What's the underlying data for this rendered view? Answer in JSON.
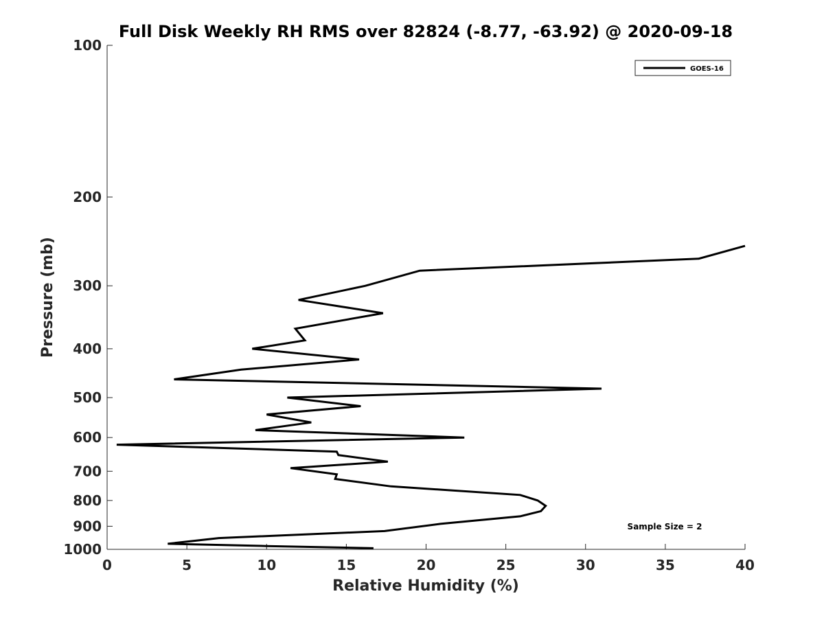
{
  "chart_data": {
    "type": "line",
    "title": "Full Disk Weekly RH RMS over 82824 (-8.77, -63.92) @ 2020-09-18",
    "xlabel": "Relative Humidity (%)",
    "ylabel": "Pressure (mb)",
    "xlim": [
      0,
      40
    ],
    "ylim": [
      1000,
      100
    ],
    "yscale": "log",
    "x_ticks": [
      0,
      5,
      10,
      15,
      20,
      25,
      30,
      35,
      40
    ],
    "y_ticks": [
      100,
      200,
      300,
      400,
      500,
      600,
      700,
      800,
      900,
      1000
    ],
    "grid": false,
    "legend_position": "top-right",
    "annotation": "Sample Size = 2",
    "series": [
      {
        "name": "GOES-16",
        "color": "#000000",
        "x": [
          40.0,
          37.1,
          19.6,
          16.2,
          12.0,
          17.3,
          11.8,
          12.4,
          9.1,
          15.8,
          8.4,
          4.2,
          31.0,
          11.3,
          15.9,
          10.0,
          12.8,
          9.3,
          22.4,
          0.6,
          14.4,
          14.5,
          17.6,
          11.5,
          14.4,
          14.3,
          17.8,
          25.9,
          27.0,
          27.5,
          27.2,
          25.9,
          20.9,
          17.4,
          7.0,
          3.8,
          10.0,
          16.7
        ],
        "y": [
          250,
          265,
          280,
          300,
          320,
          340,
          365,
          385,
          400,
          420,
          440,
          460,
          480,
          500,
          520,
          540,
          560,
          580,
          600,
          620,
          640,
          650,
          670,
          690,
          710,
          725,
          750,
          780,
          800,
          820,
          840,
          860,
          890,
          920,
          950,
          975,
          985,
          995
        ]
      }
    ]
  }
}
